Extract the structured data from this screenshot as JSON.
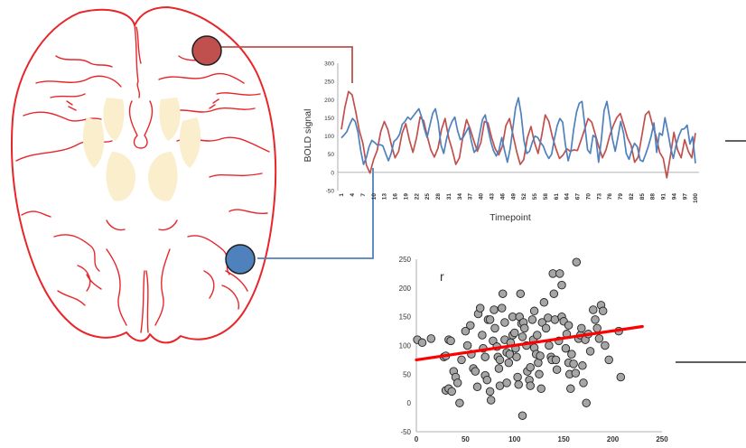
{
  "colors": {
    "brain_outline": "#e8262a",
    "nuclei_fill": "#fbeecd",
    "roi_red": "#c0504d",
    "roi_blue": "#4f81bd",
    "scatter_point": "#a6a6a6",
    "fit_line": "#ff0000",
    "axis": "#000000"
  },
  "chart_data": [
    {
      "type": "line",
      "xlabel": "Timepoint",
      "ylabel": "BOLD signal",
      "ylim": [
        -50,
        300
      ],
      "yticks": [
        -50,
        0,
        50,
        100,
        150,
        200,
        250,
        300
      ],
      "xtick_labels": [
        "1",
        "4",
        "7",
        "10",
        "13",
        "16",
        "19",
        "22",
        "25",
        "28",
        "31",
        "34",
        "37",
        "40",
        "43",
        "46",
        "49",
        "52",
        "55",
        "58",
        "61",
        "64",
        "67",
        "70",
        "73",
        "76",
        "79",
        "82",
        "85",
        "88",
        "91",
        "94",
        "97",
        "100"
      ],
      "grid": false,
      "legend": "none",
      "series": [
        {
          "color": "#c0504d",
          "values": [
            118,
            180,
            222,
            213,
            168,
            115,
            80,
            20,
            -2,
            35,
            60,
            112,
            140,
            117,
            75,
            40,
            58,
            108,
            134,
            90,
            55,
            95,
            152,
            142,
            100,
            62,
            42,
            66,
            118,
            148,
            95,
            62,
            22,
            40,
            100,
            145,
            120,
            88,
            58,
            82,
            140,
            136,
            96,
            65,
            48,
            72,
            128,
            148,
            102,
            58,
            22,
            35,
            95,
            126,
            82,
            52,
            100,
            158,
            140,
            98,
            65,
            38,
            48,
            65,
            58,
            62,
            60,
            88,
            118,
            148,
            138,
            105,
            70,
            40,
            62,
            100,
            128,
            150,
            162,
            130,
            95,
            75,
            28,
            42,
            100,
            158,
            168,
            130,
            100,
            55,
            38,
            -15,
            45,
            110,
            62,
            40,
            90,
            58,
            40,
            108
          ]
        },
        {
          "color": "#4f81bd",
          "values": [
            95,
            103,
            112,
            132,
            148,
            140,
            110,
            60,
            22,
            40,
            70,
            88,
            82,
            75,
            76,
            73,
            52,
            32,
            52,
            85,
            92,
            104,
            132,
            140,
            152,
            145,
            155,
            165,
            175,
            152,
            120,
            96,
            130,
            162,
            175,
            138,
            75,
            52,
            92,
            120,
            140,
            152,
            115,
            90,
            96,
            110,
            124,
            86,
            55,
            65,
            105,
            145,
            158,
            120,
            85,
            60,
            45,
            62,
            96,
            60,
            28,
            64,
            122,
            178,
            205,
            158,
            88,
            52,
            58,
            82,
            100,
            96,
            82,
            72,
            52,
            38,
            50,
            92,
            128,
            148,
            138,
            75,
            32,
            60,
            120,
            165,
            190,
            195,
            130,
            62,
            52,
            102,
            95,
            28,
            92,
            170,
            195,
            148,
            92,
            58,
            98,
            140,
            108,
            52,
            36,
            62,
            80,
            70,
            34,
            30,
            50,
            72,
            100,
            136,
            55,
            108,
            102,
            150,
            112,
            70,
            38,
            75,
            100,
            118,
            120,
            130,
            78,
            98,
            25
          ]
        }
      ]
    },
    {
      "type": "scatter",
      "title": "r",
      "xlim": [
        0,
        250
      ],
      "ylim": [
        -50,
        250
      ],
      "xticks": [
        0,
        50,
        100,
        150,
        200,
        250
      ],
      "yticks": [
        -50,
        0,
        50,
        100,
        150,
        200,
        250
      ],
      "grid": false,
      "legend": "none",
      "fit_line": {
        "x": [
          0,
          230
        ],
        "y": [
          75,
          133
        ]
      },
      "points": [
        [
          1,
          110
        ],
        [
          6,
          105
        ],
        [
          15,
          112
        ],
        [
          28,
          80
        ],
        [
          30,
          82
        ],
        [
          33,
          110
        ],
        [
          35,
          108
        ],
        [
          30,
          22
        ],
        [
          33,
          25
        ],
        [
          36,
          20
        ],
        [
          38,
          55
        ],
        [
          40,
          45
        ],
        [
          42,
          35
        ],
        [
          44,
          0
        ],
        [
          46,
          75
        ],
        [
          50,
          125
        ],
        [
          52,
          100
        ],
        [
          55,
          135
        ],
        [
          56,
          85
        ],
        [
          58,
          60
        ],
        [
          60,
          55
        ],
        [
          62,
          28
        ],
        [
          63,
          155
        ],
        [
          65,
          165
        ],
        [
          67,
          118
        ],
        [
          68,
          95
        ],
        [
          70,
          80
        ],
        [
          70,
          48
        ],
        [
          72,
          40
        ],
        [
          73,
          145
        ],
        [
          75,
          145
        ],
        [
          75,
          20
        ],
        [
          76,
          5
        ],
        [
          78,
          108
        ],
        [
          79,
          162
        ],
        [
          80,
          130
        ],
        [
          82,
          98
        ],
        [
          83,
          80
        ],
        [
          84,
          60
        ],
        [
          85,
          30
        ],
        [
          85,
          75
        ],
        [
          87,
          165
        ],
        [
          88,
          190
        ],
        [
          90,
          140
        ],
        [
          90,
          110
        ],
        [
          92,
          88
        ],
        [
          92,
          35
        ],
        [
          94,
          70
        ],
        [
          95,
          85
        ],
        [
          96,
          105
        ],
        [
          98,
          118
        ],
        [
          98,
          150
        ],
        [
          100,
          122
        ],
        [
          101,
          95
        ],
        [
          102,
          80
        ],
        [
          103,
          45
        ],
        [
          104,
          32
        ],
        [
          105,
          150
        ],
        [
          106,
          190
        ],
        [
          107,
          138
        ],
        [
          108,
          115
        ],
        [
          108,
          -22
        ],
        [
          109,
          140
        ],
        [
          110,
          130
        ],
        [
          112,
          100
        ],
        [
          113,
          55
        ],
        [
          115,
          40
        ],
        [
          116,
          30
        ],
        [
          116,
          62
        ],
        [
          118,
          145
        ],
        [
          119,
          110
        ],
        [
          120,
          160
        ],
        [
          120,
          96
        ],
        [
          122,
          85
        ],
        [
          123,
          118
        ],
        [
          124,
          70
        ],
        [
          125,
          50
        ],
        [
          126,
          82
        ],
        [
          127,
          25
        ],
        [
          128,
          140
        ],
        [
          130,
          175
        ],
        [
          132,
          130
        ],
        [
          134,
          148
        ],
        [
          135,
          100
        ],
        [
          137,
          80
        ],
        [
          138,
          75
        ],
        [
          139,
          225
        ],
        [
          140,
          190
        ],
        [
          141,
          145
        ],
        [
          142,
          75
        ],
        [
          143,
          58
        ],
        [
          145,
          108
        ],
        [
          146,
          225
        ],
        [
          148,
          205
        ],
        [
          148,
          150
        ],
        [
          150,
          142
        ],
        [
          152,
          95
        ],
        [
          153,
          120
        ],
        [
          155,
          135
        ],
        [
          155,
          70
        ],
        [
          156,
          50
        ],
        [
          157,
          25
        ],
        [
          158,
          85
        ],
        [
          160,
          68
        ],
        [
          162,
          52
        ],
        [
          163,
          245
        ],
        [
          165,
          112
        ],
        [
          167,
          118
        ],
        [
          168,
          130
        ],
        [
          169,
          65
        ],
        [
          170,
          35
        ],
        [
          172,
          110
        ],
        [
          173,
          0
        ],
        [
          175,
          120
        ],
        [
          177,
          90
        ],
        [
          180,
          162
        ],
        [
          182,
          145
        ],
        [
          184,
          130
        ],
        [
          186,
          112
        ],
        [
          188,
          170
        ],
        [
          190,
          160
        ],
        [
          192,
          100
        ],
        [
          196,
          75
        ],
        [
          206,
          125
        ],
        [
          208,
          45
        ]
      ]
    }
  ]
}
